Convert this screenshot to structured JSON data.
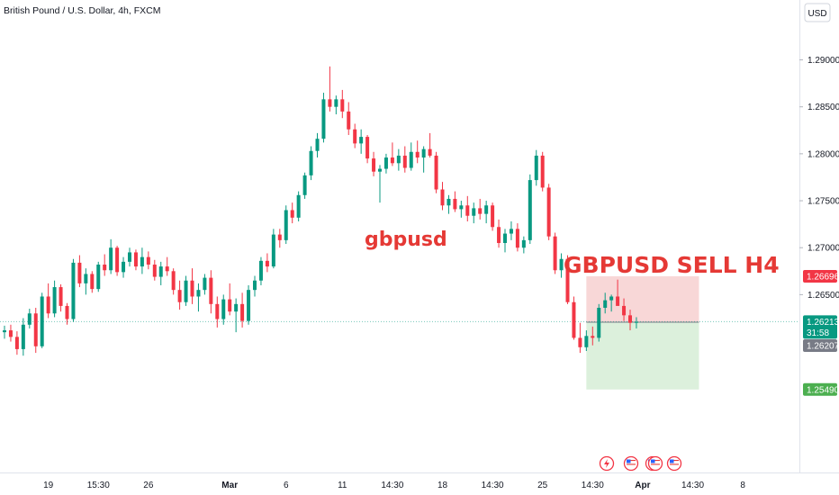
{
  "chart_data": {
    "type": "candlestick",
    "title": "British Pound / U.S. Dollar, 4h, FXCM",
    "currency_button": "USD",
    "ylim": [
      1.2475,
      1.2935
    ],
    "y_ticks": [
      "1.29000",
      "1.28500",
      "1.28000",
      "1.27500",
      "1.27000",
      "1.26500"
    ],
    "y_tick_values": [
      1.29,
      1.285,
      1.28,
      1.275,
      1.27,
      1.265
    ],
    "x_ticks": [
      {
        "label": "19",
        "i": 7,
        "bold": false
      },
      {
        "label": "15:30",
        "i": 15,
        "bold": false
      },
      {
        "label": "26",
        "i": 23,
        "bold": false
      },
      {
        "label": "Mar",
        "i": 36,
        "bold": true
      },
      {
        "label": "6",
        "i": 45,
        "bold": false
      },
      {
        "label": "11",
        "i": 54,
        "bold": false
      },
      {
        "label": "14:30",
        "i": 62,
        "bold": false
      },
      {
        "label": "18",
        "i": 70,
        "bold": false
      },
      {
        "label": "14:30",
        "i": 78,
        "bold": false
      },
      {
        "label": "25",
        "i": 86,
        "bold": false
      },
      {
        "label": "14:30",
        "i": 94,
        "bold": false
      },
      {
        "label": "Apr",
        "i": 102,
        "bold": true
      },
      {
        "label": "14:30",
        "i": 110,
        "bold": false
      },
      {
        "label": "8",
        "i": 118,
        "bold": false
      }
    ],
    "annotations": {
      "pair_label": "gbpusd",
      "signal_label": "GBPUSD SELL H4"
    },
    "price_tags": {
      "stop_loss": {
        "label": "1.26696",
        "value": 1.26696,
        "color": "#f23645"
      },
      "current": {
        "label": "1.26213",
        "value": 1.26213,
        "countdown": "31:58",
        "color": "#089981"
      },
      "entry": {
        "label": "1.26207",
        "value": 1.26207,
        "color": "#787b86"
      },
      "take_profit": {
        "label": "1.25490",
        "value": 1.2549,
        "color": "#4caf50"
      }
    },
    "position": {
      "side": "short",
      "entry": 1.26207,
      "stop": 1.26696,
      "target": 1.2549,
      "from_i": 93,
      "to_i": 111
    },
    "colors": {
      "up": "#089981",
      "down": "#f23645",
      "risk": "#f8d7d7",
      "reward": "#dcf0dc"
    },
    "event_icons": [
      "lightning-icon",
      "flag-us-icon",
      "flag-us-icon",
      "flag-us-icon",
      "flag-us-icon"
    ],
    "candles": [
      [
        1.261,
        1.2617,
        1.2603,
        1.2612
      ],
      [
        1.2612,
        1.2618,
        1.26,
        1.2605
      ],
      [
        1.2605,
        1.2611,
        1.2586,
        1.2592
      ],
      [
        1.2592,
        1.2625,
        1.2585,
        1.2618
      ],
      [
        1.2618,
        1.2635,
        1.2614,
        1.263
      ],
      [
        1.263,
        1.2636,
        1.2588,
        1.2595
      ],
      [
        1.2595,
        1.2652,
        1.2593,
        1.2648
      ],
      [
        1.2648,
        1.2662,
        1.2625,
        1.263
      ],
      [
        1.263,
        1.2665,
        1.2626,
        1.2658
      ],
      [
        1.2658,
        1.2661,
        1.2632,
        1.2638
      ],
      [
        1.2638,
        1.2641,
        1.2618,
        1.2624
      ],
      [
        1.2624,
        1.2688,
        1.2621,
        1.2684
      ],
      [
        1.2684,
        1.2692,
        1.2658,
        1.2662
      ],
      [
        1.2662,
        1.2678,
        1.265,
        1.2672
      ],
      [
        1.2672,
        1.2675,
        1.2652,
        1.2656
      ],
      [
        1.2656,
        1.2685,
        1.2653,
        1.2682
      ],
      [
        1.2682,
        1.2693,
        1.267,
        1.2676
      ],
      [
        1.2676,
        1.2709,
        1.2672,
        1.27
      ],
      [
        1.27,
        1.2702,
        1.267,
        1.2674
      ],
      [
        1.2674,
        1.269,
        1.2668,
        1.2685
      ],
      [
        1.2685,
        1.27,
        1.268,
        1.2695
      ],
      [
        1.2695,
        1.2698,
        1.2676,
        1.268
      ],
      [
        1.268,
        1.27,
        1.2672,
        1.269
      ],
      [
        1.269,
        1.2696,
        1.2677,
        1.2682
      ],
      [
        1.2682,
        1.2687,
        1.2665,
        1.2669
      ],
      [
        1.2669,
        1.2685,
        1.266,
        1.268
      ],
      [
        1.268,
        1.269,
        1.267,
        1.2675
      ],
      [
        1.2675,
        1.2678,
        1.265,
        1.2655
      ],
      [
        1.2655,
        1.2665,
        1.2634,
        1.2642
      ],
      [
        1.2642,
        1.267,
        1.2638,
        1.2665
      ],
      [
        1.2665,
        1.2678,
        1.264,
        1.2648
      ],
      [
        1.2648,
        1.2662,
        1.2632,
        1.2655
      ],
      [
        1.2655,
        1.2672,
        1.265,
        1.2668
      ],
      [
        1.2668,
        1.2676,
        1.263,
        1.264
      ],
      [
        1.264,
        1.2648,
        1.2615,
        1.2624
      ],
      [
        1.2624,
        1.265,
        1.2618,
        1.2645
      ],
      [
        1.2645,
        1.2662,
        1.2628,
        1.2632
      ],
      [
        1.2632,
        1.2646,
        1.261,
        1.264
      ],
      [
        1.264,
        1.2652,
        1.2615,
        1.2622
      ],
      [
        1.2622,
        1.266,
        1.2618,
        1.2655
      ],
      [
        1.2655,
        1.267,
        1.2648,
        1.2665
      ],
      [
        1.2665,
        1.269,
        1.266,
        1.2686
      ],
      [
        1.2686,
        1.2694,
        1.2674,
        1.268
      ],
      [
        1.268,
        1.272,
        1.2678,
        1.2714
      ],
      [
        1.2714,
        1.272,
        1.27,
        1.2708
      ],
      [
        1.2708,
        1.2745,
        1.2704,
        1.274
      ],
      [
        1.274,
        1.2748,
        1.2726,
        1.2732
      ],
      [
        1.2732,
        1.276,
        1.2728,
        1.2756
      ],
      [
        1.2756,
        1.278,
        1.2752,
        1.2777
      ],
      [
        1.2777,
        1.2808,
        1.2772,
        1.2803
      ],
      [
        1.2803,
        1.2822,
        1.2796,
        1.2816
      ],
      [
        1.2816,
        1.2865,
        1.2812,
        1.2858
      ],
      [
        1.2858,
        1.2893,
        1.2845,
        1.285
      ],
      [
        1.285,
        1.2862,
        1.2842,
        1.2858
      ],
      [
        1.2858,
        1.2868,
        1.2838,
        1.2845
      ],
      [
        1.2845,
        1.2855,
        1.282,
        1.2826
      ],
      [
        1.2826,
        1.2832,
        1.2806,
        1.2811
      ],
      [
        1.2811,
        1.2826,
        1.28,
        1.2818
      ],
      [
        1.2818,
        1.282,
        1.279,
        1.2795
      ],
      [
        1.2795,
        1.2802,
        1.2776,
        1.2781
      ],
      [
        1.2781,
        1.2788,
        1.2748,
        1.2784
      ],
      [
        1.2784,
        1.28,
        1.2779,
        1.2796
      ],
      [
        1.2796,
        1.2812,
        1.2787,
        1.279
      ],
      [
        1.279,
        1.2805,
        1.2782,
        1.2798
      ],
      [
        1.2798,
        1.2808,
        1.278,
        1.2785
      ],
      [
        1.2785,
        1.2812,
        1.2782,
        1.2802
      ],
      [
        1.2802,
        1.2814,
        1.279,
        1.2796
      ],
      [
        1.2796,
        1.2808,
        1.278,
        1.2805
      ],
      [
        1.2805,
        1.2822,
        1.2796,
        1.2798
      ],
      [
        1.2798,
        1.2802,
        1.2758,
        1.2762
      ],
      [
        1.2762,
        1.277,
        1.274,
        1.2745
      ],
      [
        1.2745,
        1.2756,
        1.2736,
        1.2752
      ],
      [
        1.2752,
        1.276,
        1.2738,
        1.2741
      ],
      [
        1.2741,
        1.275,
        1.2732,
        1.2745
      ],
      [
        1.2745,
        1.2755,
        1.2728,
        1.2734
      ],
      [
        1.2734,
        1.2748,
        1.2726,
        1.2742
      ],
      [
        1.2742,
        1.2752,
        1.273,
        1.2736
      ],
      [
        1.2736,
        1.275,
        1.2726,
        1.2745
      ],
      [
        1.2745,
        1.2748,
        1.2718,
        1.2722
      ],
      [
        1.2722,
        1.273,
        1.27,
        1.2705
      ],
      [
        1.2705,
        1.272,
        1.2695,
        1.2715
      ],
      [
        1.2715,
        1.2728,
        1.2708,
        1.272
      ],
      [
        1.272,
        1.2726,
        1.2696,
        1.27
      ],
      [
        1.27,
        1.2712,
        1.2694,
        1.2708
      ],
      [
        1.2708,
        1.2778,
        1.2704,
        1.2772
      ],
      [
        1.2772,
        1.2804,
        1.2766,
        1.2798
      ],
      [
        1.2798,
        1.2802,
        1.276,
        1.2764
      ],
      [
        1.2764,
        1.2768,
        1.2708,
        1.2712
      ],
      [
        1.2712,
        1.2716,
        1.2672,
        1.2676
      ],
      [
        1.2676,
        1.2694,
        1.2668,
        1.2688
      ],
      [
        1.2688,
        1.2692,
        1.264,
        1.2642
      ],
      [
        1.2642,
        1.2648,
        1.2602,
        1.2604
      ],
      [
        1.2604,
        1.262,
        1.2588,
        1.2594
      ],
      [
        1.2594,
        1.2612,
        1.259,
        1.2606
      ],
      [
        1.2606,
        1.2616,
        1.2596,
        1.2604
      ],
      [
        1.2604,
        1.264,
        1.26,
        1.2636
      ],
      [
        1.2636,
        1.2652,
        1.263,
        1.2644
      ],
      [
        1.2644,
        1.265,
        1.2632,
        1.2648
      ],
      [
        1.2648,
        1.2666,
        1.2642,
        1.2638
      ],
      [
        1.2638,
        1.2646,
        1.2622,
        1.2628
      ],
      [
        1.2628,
        1.2634,
        1.2612,
        1.262
      ],
      [
        1.262,
        1.2626,
        1.2614,
        1.2621
      ]
    ]
  }
}
